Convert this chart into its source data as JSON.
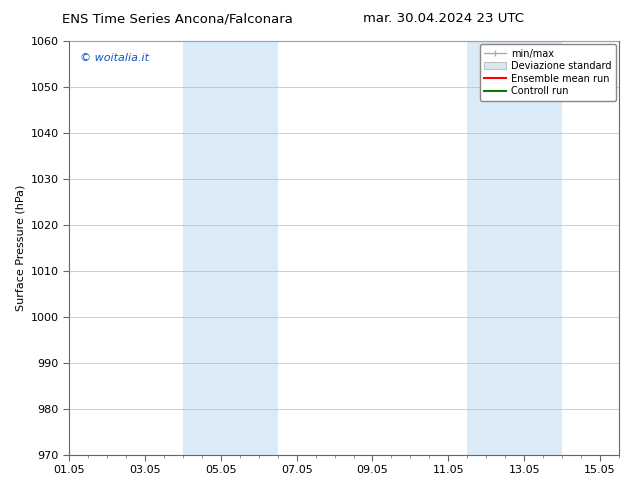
{
  "title_left": "ENS Time Series Ancona/Falconara",
  "title_right": "mar. 30.04.2024 23 UTC",
  "ylabel": "Surface Pressure (hPa)",
  "ylim": [
    970,
    1060
  ],
  "yticks": [
    970,
    980,
    990,
    1000,
    1010,
    1020,
    1030,
    1040,
    1050,
    1060
  ],
  "xlim": [
    0,
    14.5
  ],
  "xtick_labels": [
    "01.05",
    "03.05",
    "05.05",
    "07.05",
    "09.05",
    "11.05",
    "13.05",
    "15.05"
  ],
  "xtick_positions": [
    0,
    2,
    4,
    6,
    8,
    10,
    12,
    14
  ],
  "shaded_bands": [
    {
      "xmin": 3.0,
      "xmax": 3.5,
      "color": "#daeaf6"
    },
    {
      "xmin": 3.5,
      "xmax": 5.5,
      "color": "#daeaf6"
    },
    {
      "xmin": 10.5,
      "xmax": 11.0,
      "color": "#daeaf6"
    },
    {
      "xmin": 11.0,
      "xmax": 13.0,
      "color": "#daeaf6"
    }
  ],
  "copyright_text": "© woitalia.it",
  "copyright_color": "#1155cc",
  "background_color": "#ffffff",
  "plot_bg_color": "#ffffff",
  "grid_color": "#bbbbbb",
  "title_fontsize": 9.5,
  "axis_label_fontsize": 8,
  "tick_fontsize": 8,
  "figwidth": 6.34,
  "figheight": 4.9,
  "dpi": 100
}
